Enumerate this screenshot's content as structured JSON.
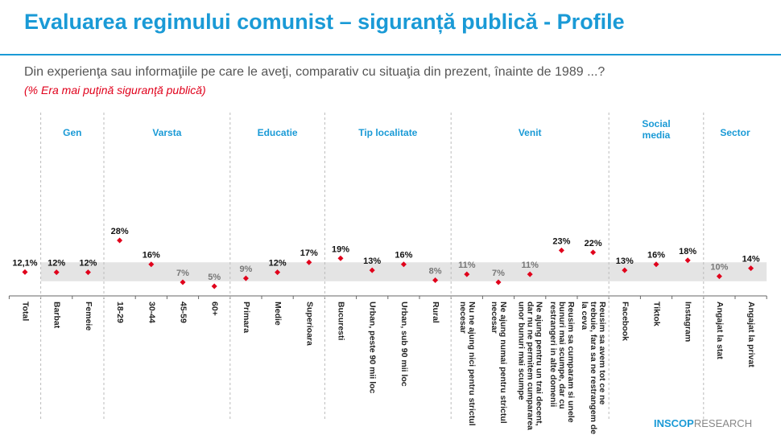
{
  "header": {
    "title": "Evaluarea regimului comunist – siguranță publică - Profile",
    "question": "Din experienţa sau informaţiile pe care le aveţi, comparativ cu situaţia din prezent, înainte de 1989 ...?",
    "subtitle": "(% Era mai puţină siguranţă publică)"
  },
  "logo": {
    "brand": "INSCOP",
    "suffix": "RESEARCH"
  },
  "colors": {
    "accent": "#1a9ad6",
    "marker": "#e0001b",
    "band": "#e4e4e4"
  },
  "chart_data": {
    "type": "scatter",
    "title": "(% Era mai puţină siguranţă publică)",
    "ylim": [
      0,
      30
    ],
    "band": [
      7.5,
      17
    ],
    "groups": [
      {
        "name": "Gen",
        "start": 1,
        "end": 2
      },
      {
        "name": "Varsta",
        "start": 3,
        "end": 6
      },
      {
        "name": "Educatie",
        "start": 7,
        "end": 9
      },
      {
        "name": "Tip localitate",
        "start": 10,
        "end": 13
      },
      {
        "name": "Venit",
        "start": 14,
        "end": 18
      },
      {
        "name": "Social media",
        "start": 19,
        "end": 21
      },
      {
        "name": "Sector",
        "start": 22,
        "end": 23
      }
    ],
    "categories": [
      "Total",
      "Barbat",
      "Femeie",
      "18-29",
      "30-44",
      "45-59",
      "60+",
      "Primara",
      "Medie",
      "Superioara",
      "Bucuresti",
      "Urban, peste 90 mii loc",
      "Urban, sub 90 mii loc",
      "Rural",
      "Nu ne ajung nici pentru strictul necesar",
      "Ne ajung numai pentru strictul necesar",
      "Ne ajung pentru un trai decent, dar nu ne permitem cumpararea unor bunuri mai scumpe",
      "Reusim sa cumparam si unele bunuri mai scumpe, dar cu restrangeri in alte domenii",
      "Reusim sa avem tot ce ne trebuie, fara sa ne restrangem de la ceva",
      "Facebook",
      "Tiktok",
      "Instagram",
      "Angajat la stat",
      "Angajat la privat"
    ],
    "values": [
      12.1,
      12,
      12,
      28,
      16,
      7,
      5,
      9,
      12,
      17,
      19,
      13,
      16,
      8,
      11,
      7,
      11,
      23,
      22,
      13,
      16,
      18,
      10,
      14
    ],
    "labels": [
      "12,1%",
      "12%",
      "12%",
      "28%",
      "16%",
      "7%",
      "5%",
      "9%",
      "12%",
      "17%",
      "19%",
      "13%",
      "16%",
      "8%",
      "11%",
      "7%",
      "11%",
      "23%",
      "22%",
      "13%",
      "16%",
      "18%",
      "10%",
      "14%"
    ]
  }
}
